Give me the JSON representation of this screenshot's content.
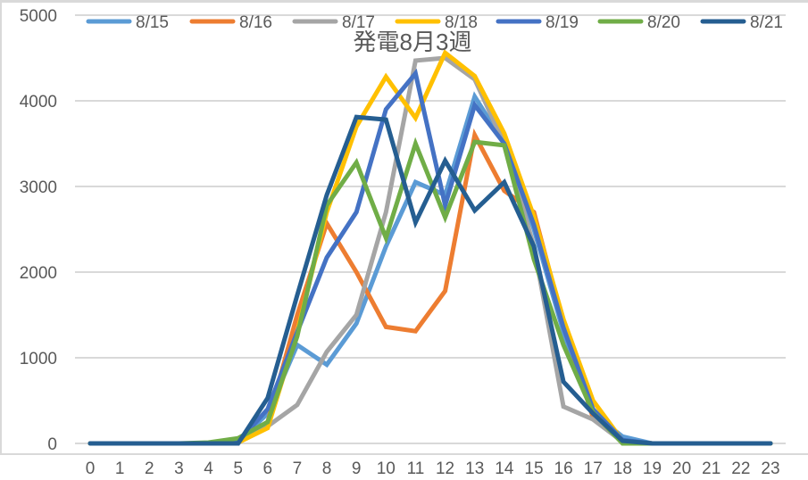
{
  "chart_data": {
    "type": "line",
    "title": "発電8月3週",
    "xlabel": "",
    "ylabel": "",
    "ylim": [
      0,
      5000
    ],
    "yticks": [
      0,
      1000,
      2000,
      3000,
      4000,
      5000
    ],
    "grid": true,
    "legend_position": "top",
    "categories": [
      "0",
      "1",
      "2",
      "3",
      "4",
      "5",
      "6",
      "7",
      "8",
      "9",
      "10",
      "11",
      "12",
      "13",
      "14",
      "15",
      "16",
      "17",
      "18",
      "19",
      "20",
      "21",
      "22",
      "23"
    ],
    "series": [
      {
        "name": "8/15",
        "color": "#5B9BD5",
        "values": [
          0,
          0,
          0,
          0,
          0,
          20,
          350,
          1150,
          920,
          1400,
          2300,
          3050,
          2900,
          4050,
          3500,
          2500,
          1300,
          350,
          80,
          0,
          0,
          0,
          0,
          0
        ]
      },
      {
        "name": "8/16",
        "color": "#ED7D31",
        "values": [
          0,
          0,
          0,
          0,
          0,
          30,
          250,
          1500,
          2570,
          2000,
          1360,
          1310,
          1780,
          3600,
          2950,
          2700,
          1400,
          300,
          20,
          0,
          0,
          0,
          0,
          0
        ]
      },
      {
        "name": "8/17",
        "color": "#A5A5A5",
        "values": [
          0,
          0,
          0,
          0,
          0,
          20,
          200,
          450,
          1070,
          1500,
          2700,
          4470,
          4500,
          4250,
          3500,
          2300,
          430,
          280,
          20,
          0,
          0,
          0,
          0,
          0
        ]
      },
      {
        "name": "8/18",
        "color": "#FFC000",
        "values": [
          0,
          0,
          0,
          0,
          0,
          10,
          180,
          1300,
          2700,
          3700,
          4280,
          3800,
          4560,
          4290,
          3620,
          2650,
          1450,
          500,
          30,
          0,
          0,
          0,
          0,
          0
        ]
      },
      {
        "name": "8/19",
        "color": "#4472C4",
        "values": [
          0,
          0,
          0,
          0,
          0,
          20,
          400,
          1300,
          2170,
          2700,
          3900,
          4320,
          2780,
          3950,
          3500,
          2550,
          1350,
          400,
          40,
          0,
          0,
          0,
          0,
          0
        ]
      },
      {
        "name": "8/20",
        "color": "#70AD47",
        "values": [
          0,
          0,
          0,
          0,
          10,
          60,
          250,
          1250,
          2780,
          3280,
          2400,
          3500,
          2640,
          3520,
          3480,
          2150,
          1150,
          360,
          0,
          0,
          0,
          0,
          0,
          0
        ]
      },
      {
        "name": "8/21",
        "color": "#255E91",
        "values": [
          0,
          0,
          0,
          0,
          0,
          0,
          530,
          1730,
          2900,
          3810,
          3780,
          2580,
          3300,
          2720,
          3050,
          2300,
          720,
          350,
          30,
          0,
          0,
          0,
          0,
          0
        ]
      }
    ]
  },
  "colors": {
    "gridline": "#d9d9d9",
    "text": "#595959",
    "frame": "#d9d9d9"
  }
}
